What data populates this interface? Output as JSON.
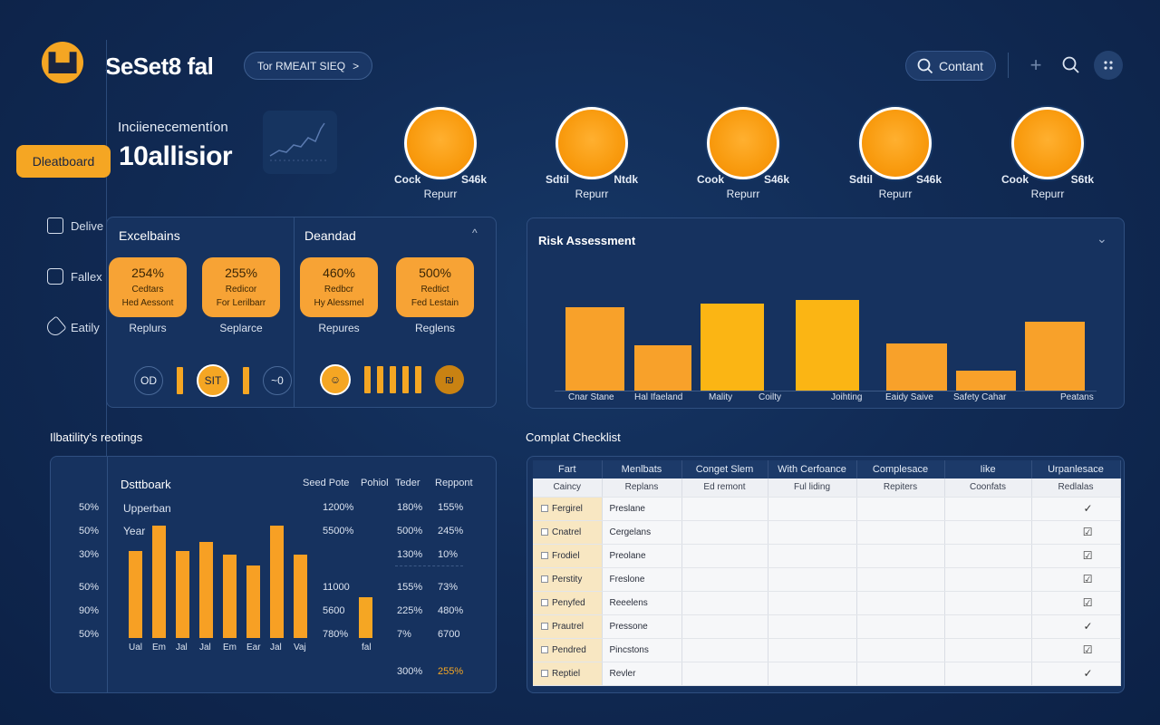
{
  "app": {
    "title": "SeSet8 fal",
    "logo_icon": "worker-logo-icon",
    "breadcrumb": "Tor RMEAIT SIEQ",
    "breadcrumb_arrow": ">"
  },
  "toolbar": {
    "search_label": "Contant",
    "plus": "+",
    "search_icon": "⌕"
  },
  "nav": {
    "active": "Dleatboard",
    "items": [
      {
        "label": "Delive",
        "icon": "truck-icon"
      },
      {
        "label": "Fallex",
        "icon": "camera-icon"
      },
      {
        "label": "Eatily",
        "icon": "tag-icon"
      }
    ]
  },
  "incident": {
    "label": "Inciienecementíon",
    "value": "10allisior"
  },
  "helmets": [
    {
      "left": "Cock",
      "right": "S46k",
      "sub": "Repurr"
    },
    {
      "left": "Sdtil",
      "right": "Ntdk",
      "sub": "Repurr"
    },
    {
      "left": "Cook",
      "right": "S46k",
      "sub": "Repurr"
    },
    {
      "left": "Sdtil",
      "right": "S46k",
      "sub": "Repurr"
    },
    {
      "left": "Cook",
      "right": "S6tk",
      "sub": "Repurr"
    }
  ],
  "metrics_panel": {
    "left_title": "Excelbains",
    "right_title": "Deandad",
    "collapse": "^",
    "cards": [
      {
        "value": "254%",
        "line1": "Cedtars",
        "line2": "Hed Aessont",
        "label": "Replurs"
      },
      {
        "value": "255%",
        "line1": "Redicor",
        "line2": "For Lerilbarr",
        "label": "Seplarce"
      },
      {
        "value": "460%",
        "line1": "Redbcr",
        "line2": "Hy Alessmel",
        "label": "Repures"
      },
      {
        "value": "500%",
        "line1": "Redtict",
        "line2": "Fed Lestain",
        "label": "Reglens"
      }
    ],
    "badges": [
      "OD",
      "SIT",
      "~0"
    ]
  },
  "risk": {
    "title": "Risk Assessment",
    "chevron": "⌄"
  },
  "chart_data": [
    {
      "type": "bar",
      "title": "Risk Assessment",
      "categories": [
        "Cnar Stane",
        "Hal Ifaeland",
        "Mality",
        "Coilty",
        "Joihting",
        "Eaidy Saive",
        "Safety Cahar",
        "Peatans"
      ],
      "values": [
        92,
        50,
        96,
        100,
        52,
        22,
        76,
        0
      ],
      "note": "relative heights"
    },
    {
      "type": "bar",
      "title": "Dsttboark",
      "categories": [
        "Ual",
        "Em",
        "Jal",
        "Jal",
        "Em",
        "Ear",
        "Jal",
        "Vaj"
      ],
      "values": [
        48,
        62,
        48,
        53,
        46,
        40,
        62,
        46
      ]
    }
  ],
  "liability": {
    "section": "Ilbatility's reotings",
    "title": "Dsttboark",
    "sub1": "Upperban",
    "sub2": "Year",
    "y_labels": [
      "50%",
      "50%",
      "30%",
      "50%",
      "90%",
      "50%"
    ],
    "mini_bar_label": "fal",
    "headers": [
      "Seed Pote",
      "Pohiol",
      "Teder",
      "Reppont"
    ],
    "col1": [
      "1200%",
      "5500%",
      "",
      "11000",
      "5600",
      "780%"
    ],
    "col3": [
      "180%",
      "500%",
      "130%",
      "155%",
      "225%",
      "7%",
      "300%"
    ],
    "col4": [
      "155%",
      "245%",
      "10%",
      "73%",
      "480%",
      "6700",
      "255%"
    ]
  },
  "checklist": {
    "section": "Complat Checklist",
    "headers": [
      "Fart",
      "Menlbats",
      "Conget Slem",
      "With Cerfoance",
      "Complesace",
      "Iike",
      "Urpanlesace"
    ],
    "subheaders": [
      "Caincy",
      "Replans",
      "Ed remont",
      "Ful liding",
      "Repiters",
      "Coonfats",
      "Redlalas"
    ],
    "rows": [
      [
        "Fergirel",
        "Preslane",
        "✓"
      ],
      [
        "Cnatrel",
        "Cergelans",
        "☑"
      ],
      [
        "Frodiel",
        "Preolane",
        "☑"
      ],
      [
        "Perstity",
        "Freslone",
        "☑"
      ],
      [
        "Penyfed",
        "Reeelens",
        "☑"
      ],
      [
        "Prautrel",
        "Pressone",
        "✓"
      ],
      [
        "Pendred",
        "Pincstons",
        "☑"
      ],
      [
        "Reptiel",
        "Revler",
        "✓"
      ]
    ]
  }
}
